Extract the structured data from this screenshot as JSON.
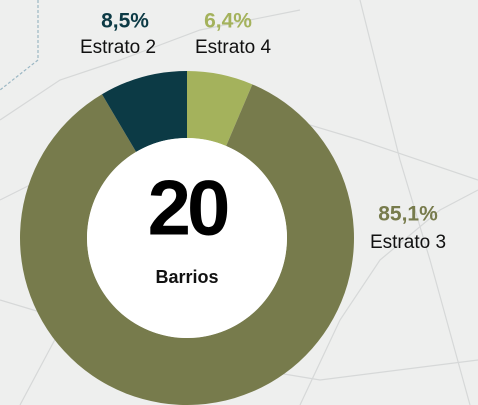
{
  "chart_data": {
    "type": "pie",
    "categories": [
      "Estrato 4",
      "Estrato 3",
      "Estrato 2"
    ],
    "values": [
      6.4,
      85.1,
      8.5
    ],
    "value_labels": [
      "6,4%",
      "85,1%",
      "8,5%"
    ],
    "colors": [
      "#a4b25c",
      "#777b4c",
      "#0c3a45"
    ],
    "donut": true,
    "center_value": "20",
    "center_label": "Barrios"
  }
}
